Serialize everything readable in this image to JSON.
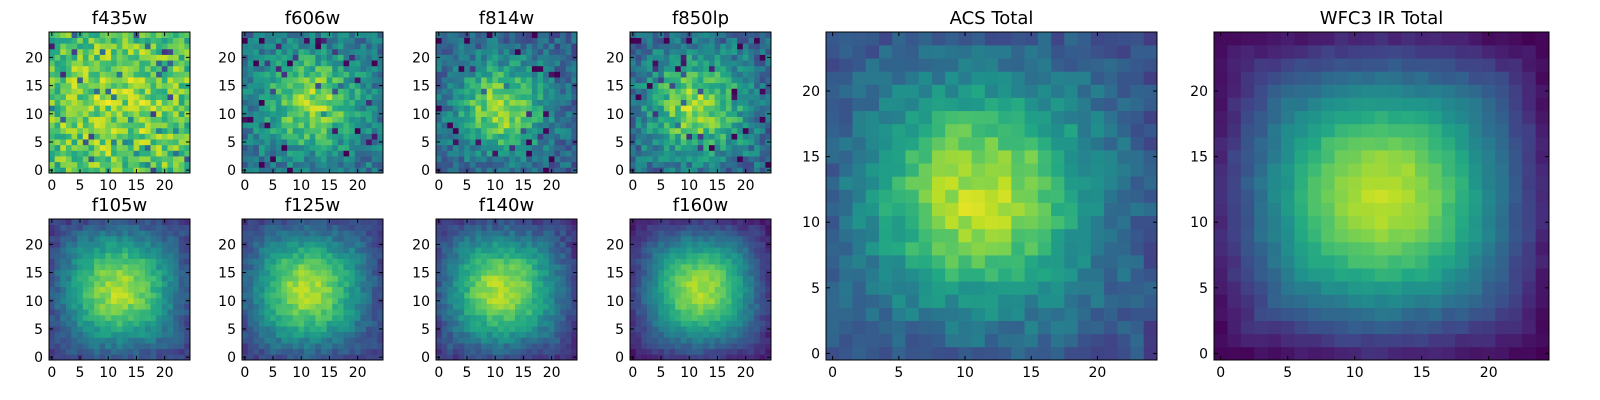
{
  "figure": {
    "description_type": "grid of pixel heatmaps"
  },
  "chart_data": [
    {
      "type": "heatmap",
      "title": "f435w",
      "xticks": [
        "0",
        "5",
        "10",
        "15",
        "20"
      ],
      "yticks": [
        "0",
        "5",
        "10",
        "15",
        "20"
      ],
      "xlim": [
        -0.5,
        24.5
      ],
      "ylim": [
        -0.5,
        24.5
      ],
      "colormap": "viridis",
      "pattern": {
        "peak": [
          12,
          12
        ],
        "sigma": 12,
        "amplitude": 0.2,
        "base": 0.62,
        "noise": 0.36,
        "edge_dark": 0.0,
        "seed": 1
      }
    },
    {
      "type": "heatmap",
      "title": "f606w",
      "xticks": [
        "0",
        "5",
        "10",
        "15",
        "20"
      ],
      "yticks": [
        "0",
        "5",
        "10",
        "15",
        "20"
      ],
      "xlim": [
        -0.5,
        24.5
      ],
      "ylim": [
        -0.5,
        24.5
      ],
      "colormap": "viridis",
      "pattern": {
        "peak": [
          12,
          12
        ],
        "sigma": 6,
        "amplitude": 0.42,
        "base": 0.42,
        "noise": 0.3,
        "edge_dark": 0.05,
        "seed": 2
      }
    },
    {
      "type": "heatmap",
      "title": "f814w",
      "xticks": [
        "0",
        "5",
        "10",
        "15",
        "20"
      ],
      "yticks": [
        "0",
        "5",
        "10",
        "15",
        "20"
      ],
      "xlim": [
        -0.5,
        24.5
      ],
      "ylim": [
        -0.5,
        24.5
      ],
      "colormap": "viridis",
      "pattern": {
        "peak": [
          11,
          11
        ],
        "sigma": 5.5,
        "amplitude": 0.48,
        "base": 0.38,
        "noise": 0.28,
        "edge_dark": 0.08,
        "seed": 3
      }
    },
    {
      "type": "heatmap",
      "title": "f850lp",
      "xticks": [
        "0",
        "5",
        "10",
        "15",
        "20"
      ],
      "yticks": [
        "0",
        "5",
        "10",
        "15",
        "20"
      ],
      "xlim": [
        -0.5,
        24.5
      ],
      "ylim": [
        -0.5,
        24.5
      ],
      "colormap": "viridis",
      "pattern": {
        "peak": [
          11,
          11
        ],
        "sigma": 6,
        "amplitude": 0.42,
        "base": 0.42,
        "noise": 0.3,
        "edge_dark": 0.1,
        "seed": 4
      }
    },
    {
      "type": "heatmap",
      "title": "f105w",
      "xticks": [
        "0",
        "5",
        "10",
        "15",
        "20"
      ],
      "yticks": [
        "0",
        "5",
        "10",
        "15",
        "20"
      ],
      "xlim": [
        -0.5,
        24.5
      ],
      "ylim": [
        -0.5,
        24.5
      ],
      "colormap": "viridis",
      "pattern": {
        "peak": [
          12,
          12
        ],
        "sigma": 7,
        "amplitude": 0.58,
        "base": 0.3,
        "noise": 0.14,
        "edge_dark": 0.15,
        "seed": 5
      }
    },
    {
      "type": "heatmap",
      "title": "f125w",
      "xticks": [
        "0",
        "5",
        "10",
        "15",
        "20"
      ],
      "yticks": [
        "0",
        "5",
        "10",
        "15",
        "20"
      ],
      "xlim": [
        -0.5,
        24.5
      ],
      "ylim": [
        -0.5,
        24.5
      ],
      "colormap": "viridis",
      "pattern": {
        "peak": [
          11,
          12
        ],
        "sigma": 7,
        "amplitude": 0.58,
        "base": 0.3,
        "noise": 0.14,
        "edge_dark": 0.15,
        "seed": 6
      }
    },
    {
      "type": "heatmap",
      "title": "f140w",
      "xticks": [
        "0",
        "5",
        "10",
        "15",
        "20"
      ],
      "yticks": [
        "0",
        "5",
        "10",
        "15",
        "20"
      ],
      "xlim": [
        -0.5,
        24.5
      ],
      "ylim": [
        -0.5,
        24.5
      ],
      "colormap": "viridis",
      "pattern": {
        "peak": [
          11,
          12
        ],
        "sigma": 7,
        "amplitude": 0.58,
        "base": 0.3,
        "noise": 0.14,
        "edge_dark": 0.18,
        "seed": 7
      }
    },
    {
      "type": "heatmap",
      "title": "f160w",
      "xticks": [
        "0",
        "5",
        "10",
        "15",
        "20"
      ],
      "yticks": [
        "0",
        "5",
        "10",
        "15",
        "20"
      ],
      "xlim": [
        -0.5,
        24.5
      ],
      "ylim": [
        -0.5,
        24.5
      ],
      "colormap": "viridis",
      "pattern": {
        "peak": [
          12,
          12
        ],
        "sigma": 7,
        "amplitude": 0.62,
        "base": 0.25,
        "noise": 0.1,
        "edge_dark": 0.2,
        "seed": 8
      }
    },
    {
      "type": "heatmap",
      "title": "ACS Total",
      "xticks": [
        "0",
        "5",
        "10",
        "15",
        "20"
      ],
      "yticks": [
        "0",
        "5",
        "10",
        "15",
        "20"
      ],
      "xlim": [
        -0.5,
        24.5
      ],
      "ylim": [
        -0.5,
        24.5
      ],
      "colormap": "viridis",
      "pattern": {
        "peak": [
          11,
          12
        ],
        "sigma": 6,
        "amplitude": 0.55,
        "base": 0.35,
        "noise": 0.16,
        "edge_dark": 0.12,
        "seed": 9
      }
    },
    {
      "type": "heatmap",
      "title": "WFC3 IR Total",
      "xticks": [
        "0",
        "5",
        "10",
        "15",
        "20"
      ],
      "yticks": [
        "0",
        "5",
        "10",
        "15",
        "20"
      ],
      "xlim": [
        -0.5,
        24.5
      ],
      "ylim": [
        -0.5,
        24.5
      ],
      "colormap": "viridis",
      "pattern": {
        "peak": [
          12,
          12
        ],
        "sigma": 7,
        "amplitude": 0.68,
        "base": 0.22,
        "noise": 0.05,
        "edge_dark": 0.25,
        "seed": 10
      }
    }
  ]
}
